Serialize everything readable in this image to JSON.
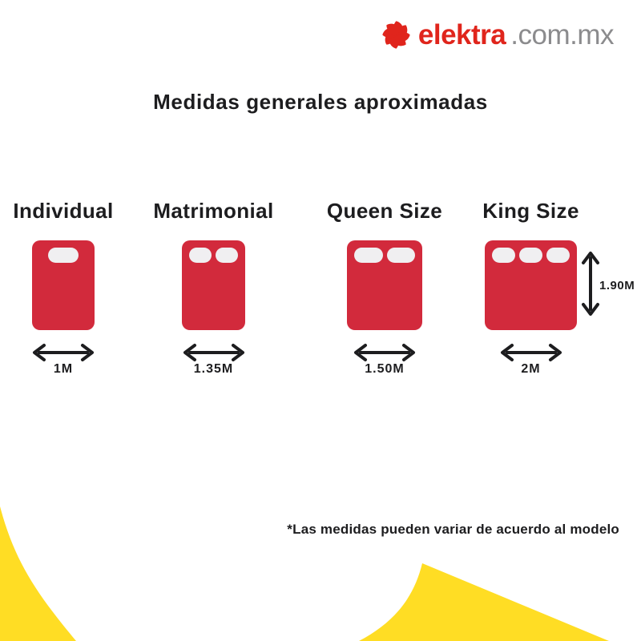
{
  "brand": {
    "name": "elektra",
    "domain": ".com.mx"
  },
  "title": "Medidas generales aproximadas",
  "beds": [
    {
      "name": "Individual",
      "width_label": "1M",
      "pillows": 1
    },
    {
      "name": "Matrimonial",
      "width_label": "1.35M",
      "pillows": 2
    },
    {
      "name": "Queen Size",
      "width_label": "1.50M",
      "pillows": 2
    },
    {
      "name": "King Size",
      "width_label": "2M",
      "pillows": 3,
      "height_label": "1.90M"
    }
  ],
  "footnote": "*Las medidas pueden variar de acuerdo al modelo",
  "colors": {
    "bed_red": "#D22A3C",
    "pillow_white": "#F0EFF1",
    "accent_yellow": "#FFDD24",
    "logo_red": "#E0251C",
    "domain_gray": "#8B8B8D",
    "text_black": "#1D1D1F"
  }
}
